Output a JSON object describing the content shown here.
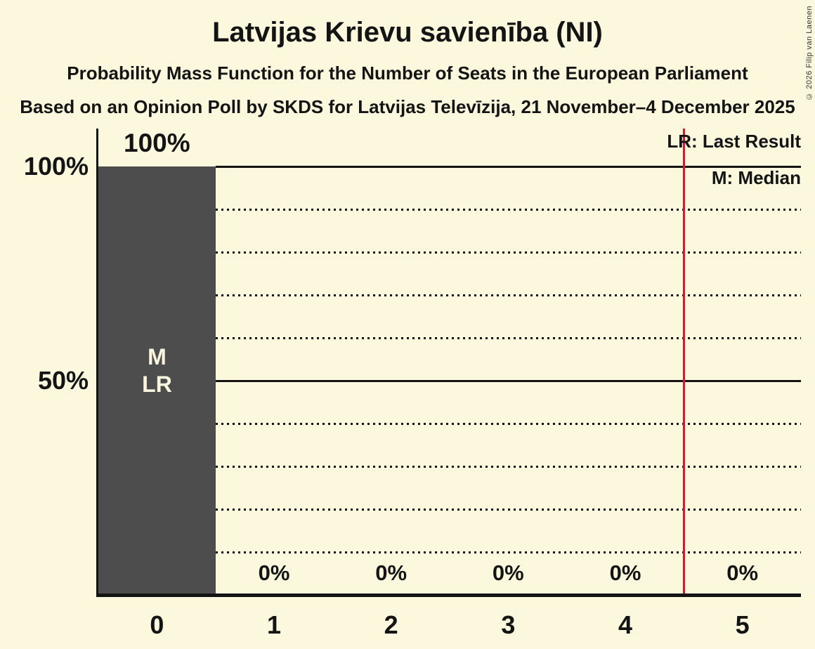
{
  "copyright": "© 2026 Filip van Laenen",
  "chart_data": {
    "type": "bar",
    "title": "Latvijas Krievu savienība (NI)",
    "subtitle": "Probability Mass Function for the Number of Seats in the European Parliament",
    "source": "Based on an Opinion Poll by SKDS for Latvijas Televīzija, 21 November–4 December 2025",
    "xlabel": "",
    "ylabel": "",
    "categories": [
      "0",
      "1",
      "2",
      "3",
      "4",
      "5"
    ],
    "values": [
      100,
      0,
      0,
      0,
      0,
      0
    ],
    "bar_value_labels": [
      "100%",
      "0%",
      "0%",
      "0%",
      "0%",
      "0%"
    ],
    "ylim": [
      0,
      100
    ],
    "ytick_labels": [
      {
        "value": 100,
        "label": "100%"
      },
      {
        "value": 50,
        "label": "50%"
      }
    ],
    "solid_gridlines": [
      100,
      50
    ],
    "dotted_gridlines": [
      90,
      80,
      70,
      60,
      40,
      30,
      20,
      10
    ],
    "grid": "horizontal; dotted every 10%, solid at 50% and 100%",
    "legend_position": "top-right",
    "legend": {
      "last_result": "LR: Last Result",
      "median": "M: Median"
    },
    "annotations": {
      "median": "M",
      "last_result": "LR",
      "annotated_category": "0"
    },
    "reference_line_x": 4.5,
    "colors": {
      "background": "#FCF8DE",
      "bar": "#4E4D4D",
      "text": "#141414",
      "bar_label_text": "#FAF5DE",
      "reference_line": "#E8112D"
    }
  }
}
